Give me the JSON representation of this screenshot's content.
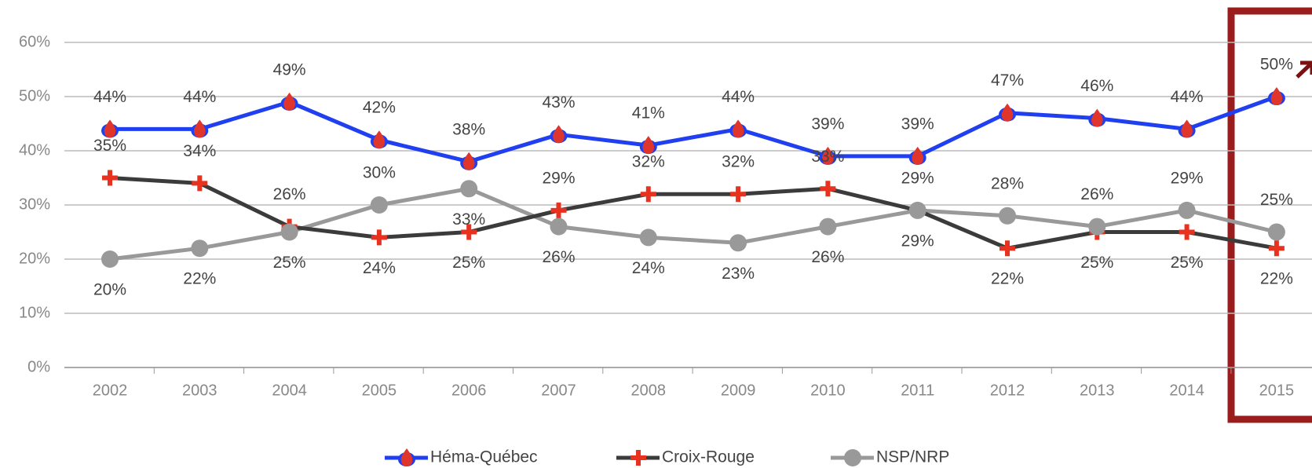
{
  "chart_data": {
    "type": "line",
    "categories": [
      "2002",
      "2003",
      "2004",
      "2005",
      "2006",
      "2007",
      "2008",
      "2009",
      "2010",
      "2011",
      "2012",
      "2013",
      "2014",
      "2015"
    ],
    "series": [
      {
        "name": "Héma-Québec",
        "color": "#1f3ff0",
        "values": [
          44,
          44,
          49,
          42,
          38,
          43,
          41,
          44,
          39,
          39,
          47,
          46,
          44,
          50
        ],
        "value_labels": [
          "44%",
          "44%",
          "49%",
          "42%",
          "38%",
          "43%",
          "41%",
          "44%",
          "39%",
          "39%",
          "47%",
          "46%",
          "44%",
          "50%"
        ]
      },
      {
        "name": "Croix-Rouge",
        "color": "#3b3b3b",
        "values": [
          35,
          34,
          26,
          24,
          25,
          29,
          32,
          32,
          33,
          29,
          22,
          25,
          25,
          22
        ],
        "value_labels": [
          "35%",
          "34%",
          "26%",
          "24%",
          "25%",
          "29%",
          "32%",
          "32%",
          "33%",
          "29%",
          "22%",
          "25%",
          "25%",
          "22%"
        ]
      },
      {
        "name": "NSP/NRP",
        "color": "#999999",
        "values": [
          20,
          22,
          25,
          30,
          33,
          26,
          24,
          23,
          26,
          29,
          28,
          26,
          29,
          25
        ],
        "value_labels": [
          "20%",
          "22%",
          "25%",
          "30%",
          "33%",
          "26%",
          "24%",
          "23%",
          "26%",
          "29%",
          "28%",
          "26%",
          "29%",
          "25%"
        ]
      }
    ],
    "ylim": [
      0,
      60
    ],
    "yticks": [
      {
        "value": 0,
        "label": "0%"
      },
      {
        "value": 10,
        "label": "10%"
      },
      {
        "value": 20,
        "label": "20%"
      },
      {
        "value": 30,
        "label": "30%"
      },
      {
        "value": 40,
        "label": "40%"
      },
      {
        "value": 50,
        "label": "50%"
      },
      {
        "value": 60,
        "label": "60%"
      }
    ],
    "grid": true,
    "legend": "bottom"
  }
}
